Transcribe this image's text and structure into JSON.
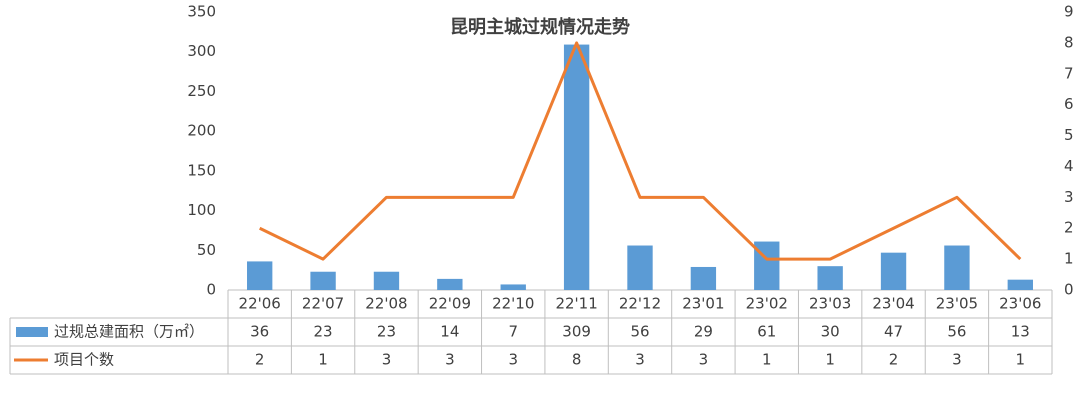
{
  "chart_data": {
    "type": "bar",
    "title": "昆明主城过规情况走势",
    "categories": [
      "22'06",
      "22'07",
      "22'08",
      "22'09",
      "22'10",
      "22'11",
      "22'12",
      "23'01",
      "23'02",
      "23'03",
      "23'04",
      "23'05",
      "23'06"
    ],
    "series": [
      {
        "name": "过规总建面积（万㎡）",
        "type": "bar",
        "color": "#5b9bd5",
        "values": [
          36,
          23,
          23,
          14,
          7,
          309,
          56,
          29,
          61,
          30,
          47,
          56,
          13
        ]
      },
      {
        "name": "项目个数",
        "type": "line",
        "axis": "y2",
        "color": "#ed7d31",
        "values": [
          2,
          1,
          3,
          3,
          3,
          8,
          3,
          3,
          1,
          1,
          2,
          3,
          1
        ]
      }
    ],
    "ylim": [
      0,
      350
    ],
    "yticks": [
      0,
      50,
      100,
      150,
      200,
      250,
      300,
      350
    ],
    "y2lim": [
      0,
      9
    ],
    "y2ticks": [
      0,
      1,
      2,
      3,
      4,
      5,
      6,
      7,
      8,
      9
    ],
    "grid": false
  }
}
